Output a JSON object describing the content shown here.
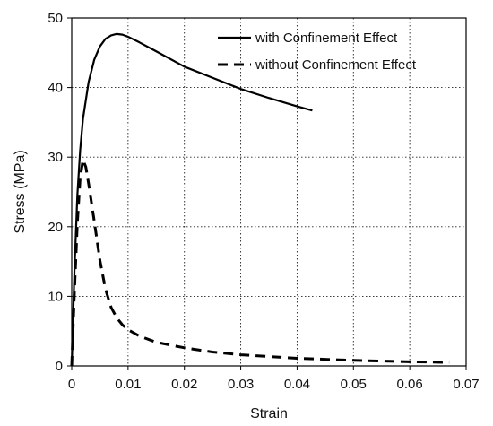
{
  "chart_data": {
    "type": "line",
    "xlabel": "Strain",
    "ylabel": "Stress (MPa)",
    "xlim": [
      0,
      0.07
    ],
    "ylim": [
      0,
      50
    ],
    "x_ticks": [
      "0",
      "0.01",
      "0.02",
      "0.03",
      "0.04",
      "0.05",
      "0.06",
      "0.07"
    ],
    "y_ticks": [
      "0",
      "10",
      "20",
      "30",
      "40",
      "50"
    ],
    "grid": "dotted",
    "legend_position": "top-right",
    "series": [
      {
        "name": "with Confinement Effect",
        "style": "solid",
        "color": "#000000",
        "x": [
          0,
          0.0005,
          0.001,
          0.0015,
          0.002,
          0.003,
          0.004,
          0.005,
          0.006,
          0.007,
          0.008,
          0.009,
          0.01,
          0.012,
          0.015,
          0.02,
          0.025,
          0.03,
          0.035,
          0.04,
          0.0427
        ],
        "y": [
          0,
          14.0,
          24.5,
          31.0,
          35.5,
          40.8,
          44.0,
          45.9,
          47.0,
          47.5,
          47.7,
          47.6,
          47.3,
          46.5,
          45.2,
          43.0,
          41.4,
          39.8,
          38.5,
          37.3,
          36.7
        ]
      },
      {
        "name": "without Confinement Effect",
        "style": "dashed",
        "color": "#000000",
        "x": [
          0,
          0.0005,
          0.001,
          0.0015,
          0.002,
          0.0025,
          0.003,
          0.004,
          0.005,
          0.006,
          0.007,
          0.008,
          0.009,
          0.01,
          0.012,
          0.015,
          0.02,
          0.025,
          0.03,
          0.04,
          0.05,
          0.06,
          0.067
        ],
        "y": [
          0,
          11.0,
          20.5,
          27.0,
          29.6,
          28.6,
          26.2,
          20.8,
          15.2,
          11.0,
          8.4,
          6.9,
          5.9,
          5.2,
          4.3,
          3.4,
          2.6,
          2.0,
          1.6,
          1.1,
          0.8,
          0.6,
          0.5
        ]
      }
    ]
  }
}
